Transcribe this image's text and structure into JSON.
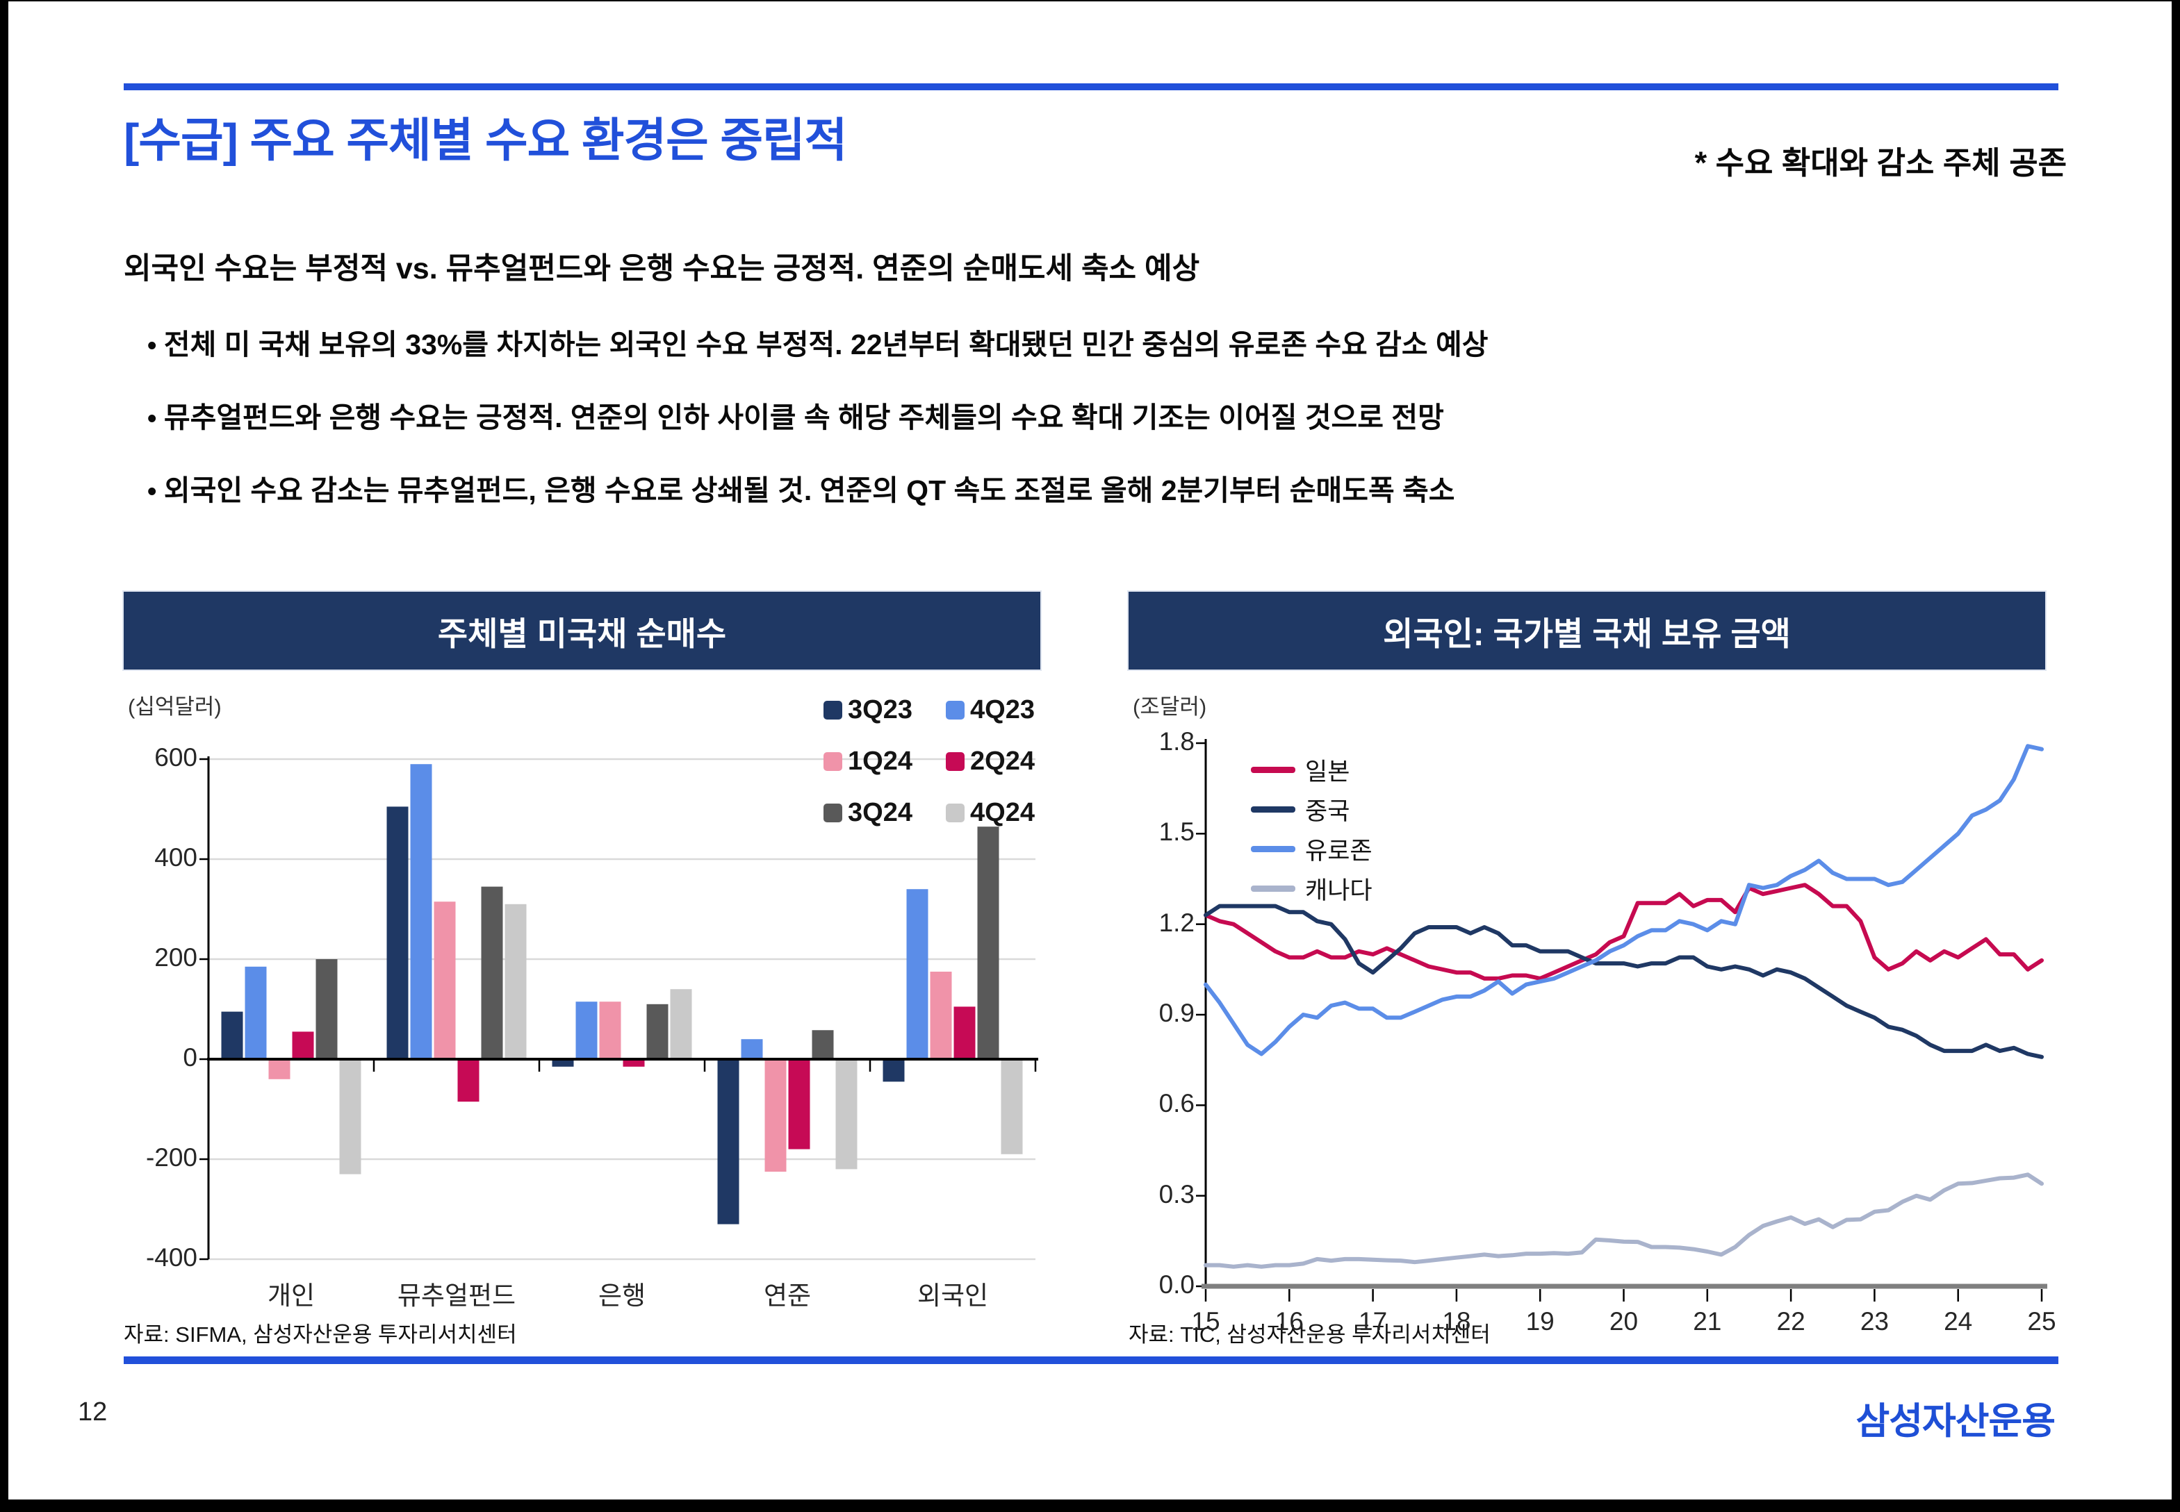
{
  "page": {
    "title": "[수급] 주요 주체별 수요 환경은 중립적",
    "title_note": "* 수요 확대와 감소 주체 공존",
    "page_number": "12",
    "logo": "삼성자산운용"
  },
  "lead": "외국인 수요는 부정적 vs. 뮤추얼펀드와 은행 수요는 긍정적. 연준의 순매도세 축소 예상",
  "bullets": [
    "전체 미 국채 보유의 33%를 차지하는 외국인 수요 부정적. 22년부터 확대됐던 민간 중심의 유로존 수요 감소 예상",
    "뮤추얼펀드와 은행 수요는 긍정적. 연준의 인하 사이클 속 해당 주체들의 수요 확대 기조는 이어질 것으로 전망",
    "외국인 수요 감소는 뮤추얼펀드, 은행 수요로 상쇄될 것. 연준의 QT 속도 조절로 올해 2분기부터 순매도폭 축소"
  ],
  "colors": {
    "accent_blue": "#2150DA",
    "panel_navy": "#1F3864",
    "gridline": "#D9D9D9",
    "axis_black": "#000000",
    "axis_gray": "#7F7F7F"
  },
  "chart_data": [
    {
      "type": "bar",
      "title": "주체별 미국채 순매수",
      "unit_label": "(십억달러)",
      "source": "자료: SIFMA, 삼성자산운용 투자리서치센터",
      "categories": [
        "개인",
        "뮤추얼펀드",
        "은행",
        "연준",
        "외국인"
      ],
      "y_ticks": [
        600,
        400,
        200,
        0,
        -200,
        -400
      ],
      "ylim": [
        -400,
        600
      ],
      "grid": true,
      "legend_position": "top-right",
      "series": [
        {
          "name": "3Q23",
          "color": "#1F3864",
          "values": [
            95,
            505,
            -15,
            -330,
            -45
          ]
        },
        {
          "name": "4Q23",
          "color": "#5B8DE8",
          "values": [
            185,
            590,
            115,
            40,
            340
          ]
        },
        {
          "name": "1Q24",
          "color": "#F093A9",
          "values": [
            -40,
            315,
            115,
            -225,
            175
          ]
        },
        {
          "name": "2Q24",
          "color": "#C60A55",
          "values": [
            55,
            -85,
            -15,
            -180,
            105
          ]
        },
        {
          "name": "3Q24",
          "color": "#595959",
          "values": [
            200,
            345,
            110,
            58,
            465
          ]
        },
        {
          "name": "4Q24",
          "color": "#C9C9C9",
          "values": [
            -230,
            310,
            140,
            -220,
            -190
          ]
        }
      ]
    },
    {
      "type": "line",
      "title": "외국인: 국가별 국채 보유 금액",
      "unit_label": "(조달러)",
      "source": "자료: TIC, 삼성자산운용 투자리서치센터",
      "x_ticks": [
        15,
        16,
        17,
        18,
        19,
        20,
        21,
        22,
        23,
        24,
        25
      ],
      "xlim": [
        15,
        25
      ],
      "y_ticks": [
        1.8,
        1.5,
        1.2,
        0.9,
        0.6,
        0.3,
        0.0
      ],
      "ylim": [
        0,
        1.8
      ],
      "grid": false,
      "legend_position": "top-left",
      "series": [
        {
          "name": "일본",
          "color": "#C60A50",
          "values": [
            1.23,
            1.21,
            1.2,
            1.17,
            1.14,
            1.11,
            1.09,
            1.09,
            1.11,
            1.09,
            1.09,
            1.11,
            1.1,
            1.12,
            1.1,
            1.08,
            1.06,
            1.05,
            1.04,
            1.04,
            1.02,
            1.02,
            1.03,
            1.03,
            1.02,
            1.04,
            1.06,
            1.08,
            1.1,
            1.14,
            1.16,
            1.27,
            1.27,
            1.27,
            1.3,
            1.26,
            1.28,
            1.28,
            1.24,
            1.32,
            1.3,
            1.31,
            1.32,
            1.33,
            1.3,
            1.26,
            1.26,
            1.21,
            1.09,
            1.05,
            1.07,
            1.11,
            1.08,
            1.11,
            1.09,
            1.12,
            1.15,
            1.1,
            1.1,
            1.05,
            1.08
          ]
        },
        {
          "name": "중국",
          "color": "#1F3864",
          "values": [
            1.23,
            1.26,
            1.26,
            1.26,
            1.26,
            1.26,
            1.24,
            1.24,
            1.21,
            1.2,
            1.15,
            1.07,
            1.04,
            1.08,
            1.12,
            1.17,
            1.19,
            1.19,
            1.19,
            1.17,
            1.19,
            1.17,
            1.13,
            1.13,
            1.11,
            1.11,
            1.11,
            1.09,
            1.07,
            1.07,
            1.07,
            1.06,
            1.07,
            1.07,
            1.09,
            1.09,
            1.06,
            1.05,
            1.06,
            1.05,
            1.03,
            1.05,
            1.04,
            1.02,
            0.99,
            0.96,
            0.93,
            0.91,
            0.89,
            0.86,
            0.85,
            0.83,
            0.8,
            0.78,
            0.78,
            0.78,
            0.8,
            0.78,
            0.79,
            0.77,
            0.76
          ]
        },
        {
          "name": "유로존",
          "color": "#5B8DE8",
          "values": [
            1.0,
            0.94,
            0.87,
            0.8,
            0.77,
            0.81,
            0.86,
            0.9,
            0.89,
            0.93,
            0.94,
            0.92,
            0.92,
            0.89,
            0.89,
            0.91,
            0.93,
            0.95,
            0.96,
            0.96,
            0.98,
            1.01,
            0.97,
            1.0,
            1.01,
            1.02,
            1.04,
            1.06,
            1.08,
            1.11,
            1.13,
            1.16,
            1.18,
            1.18,
            1.21,
            1.2,
            1.18,
            1.21,
            1.2,
            1.33,
            1.32,
            1.33,
            1.36,
            1.38,
            1.41,
            1.37,
            1.35,
            1.35,
            1.35,
            1.33,
            1.34,
            1.38,
            1.42,
            1.46,
            1.5,
            1.56,
            1.58,
            1.61,
            1.68,
            1.79,
            1.78
          ]
        },
        {
          "name": "캐나다",
          "color": "#A9B3CC",
          "values": [
            0.07,
            0.07,
            0.065,
            0.07,
            0.065,
            0.07,
            0.07,
            0.075,
            0.09,
            0.085,
            0.09,
            0.09,
            0.088,
            0.086,
            0.085,
            0.08,
            0.085,
            0.09,
            0.095,
            0.1,
            0.105,
            0.1,
            0.103,
            0.108,
            0.108,
            0.11,
            0.108,
            0.112,
            0.155,
            0.152,
            0.148,
            0.147,
            0.13,
            0.13,
            0.128,
            0.123,
            0.115,
            0.105,
            0.13,
            0.17,
            0.2,
            0.215,
            0.228,
            0.207,
            0.222,
            0.196,
            0.22,
            0.222,
            0.247,
            0.252,
            0.28,
            0.3,
            0.287,
            0.318,
            0.34,
            0.342,
            0.35,
            0.358,
            0.36,
            0.37,
            0.34
          ]
        }
      ]
    }
  ]
}
